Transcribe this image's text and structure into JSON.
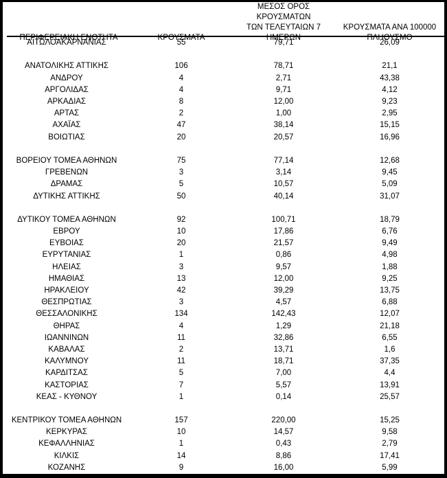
{
  "colors": {
    "text": "#000000",
    "background": "#ffffff",
    "frame_border": "#000000",
    "header_rule": "#000000"
  },
  "table": {
    "columns": [
      {
        "id": "region",
        "label": "ΠΕΡΙΦΕΡΕΙΑΚΗ ΕΝΟΤΗΤΑ"
      },
      {
        "id": "cases",
        "label": "ΚΡΟΥΣΜΑΤΑ"
      },
      {
        "id": "avg7",
        "label": "ΜΕΣΟΣ ΟΡΟΣ ΚΡΟΥΣΜΑΤΩΝ\nΤΩΝ ΤΕΛΕΥΤΑΙΩΝ 7\nΗΜΕΡΩΝ"
      },
      {
        "id": "per100k",
        "label": "ΚΡΟΥΣΜΑΤΑ ΑΝΑ 100000\nΠΛΗΘΥΣΜΟ"
      }
    ],
    "rows": [
      {
        "region": "ΑΙΤΩΛΟΑΚΑΡΝΑΝΙΑΣ",
        "cases": "55",
        "avg7": "79,71",
        "per100k": "26,09"
      },
      {
        "gap": true
      },
      {
        "region": "ΑΝΑΤΟΛΙΚΗΣ ΑΤΤΙΚΗΣ",
        "cases": "106",
        "avg7": "78,71",
        "per100k": "21,1"
      },
      {
        "region": "ΑΝΔΡΟΥ",
        "cases": "4",
        "avg7": "2,71",
        "per100k": "43,38"
      },
      {
        "region": "ΑΡΓΟΛΙΔΑΣ",
        "cases": "4",
        "avg7": "9,71",
        "per100k": "4,12"
      },
      {
        "region": "ΑΡΚΑΔΙΑΣ",
        "cases": "8",
        "avg7": "12,00",
        "per100k": "9,23"
      },
      {
        "region": "ΑΡΤΑΣ",
        "cases": "2",
        "avg7": "1,00",
        "per100k": "2,95"
      },
      {
        "region": "ΑΧΑΪΑΣ",
        "cases": "47",
        "avg7": "38,14",
        "per100k": "15,15"
      },
      {
        "region": "ΒΟΙΩΤΙΑΣ",
        "cases": "20",
        "avg7": "20,57",
        "per100k": "16,96"
      },
      {
        "gap": true
      },
      {
        "region": "ΒΟΡΕΙΟΥ ΤΟΜΕΑ ΑΘΗΝΩΝ",
        "cases": "75",
        "avg7": "77,14",
        "per100k": "12,68"
      },
      {
        "region": "ΓΡΕΒΕΝΩΝ",
        "cases": "3",
        "avg7": "3,14",
        "per100k": "9,45"
      },
      {
        "region": "ΔΡΑΜΑΣ",
        "cases": "5",
        "avg7": "10,57",
        "per100k": "5,09"
      },
      {
        "region": "ΔΥΤΙΚΗΣ ΑΤΤΙΚΗΣ",
        "cases": "50",
        "avg7": "40,14",
        "per100k": "31,07"
      },
      {
        "gap": true
      },
      {
        "region": "ΔΥΤΙΚΟΥ ΤΟΜΕΑ ΑΘΗΝΩΝ",
        "cases": "92",
        "avg7": "100,71",
        "per100k": "18,79"
      },
      {
        "region": "ΕΒΡΟΥ",
        "cases": "10",
        "avg7": "17,86",
        "per100k": "6,76"
      },
      {
        "region": "ΕΥΒΟΙΑΣ",
        "cases": "20",
        "avg7": "21,57",
        "per100k": "9,49"
      },
      {
        "region": "ΕΥΡΥΤΑΝΙΑΣ",
        "cases": "1",
        "avg7": "0,86",
        "per100k": "4,98"
      },
      {
        "region": "ΗΛΕΙΑΣ",
        "cases": "3",
        "avg7": "9,57",
        "per100k": "1,88"
      },
      {
        "region": "ΗΜΑΘΙΑΣ",
        "cases": "13",
        "avg7": "12,00",
        "per100k": "9,25"
      },
      {
        "region": "ΗΡΑΚΛΕΙΟΥ",
        "cases": "42",
        "avg7": "39,29",
        "per100k": "13,75"
      },
      {
        "region": "ΘΕΣΠΡΩΤΙΑΣ",
        "cases": "3",
        "avg7": "4,57",
        "per100k": "6,88"
      },
      {
        "region": "ΘΕΣΣΑΛΟΝΙΚΗΣ",
        "cases": "134",
        "avg7": "142,43",
        "per100k": "12,07"
      },
      {
        "region": "ΘΗΡΑΣ",
        "cases": "4",
        "avg7": "1,29",
        "per100k": "21,18"
      },
      {
        "region": "ΙΩΑΝΝΙΝΩΝ",
        "cases": "11",
        "avg7": "32,86",
        "per100k": "6,55"
      },
      {
        "region": "ΚΑΒΑΛΑΣ",
        "cases": "2",
        "avg7": "13,71",
        "per100k": "1,6"
      },
      {
        "region": "ΚΑΛΥΜΝΟΥ",
        "cases": "11",
        "avg7": "18,71",
        "per100k": "37,35"
      },
      {
        "region": "ΚΑΡΔΙΤΣΑΣ",
        "cases": "5",
        "avg7": "7,00",
        "per100k": "4,4"
      },
      {
        "region": "ΚΑΣΤΟΡΙΑΣ",
        "cases": "7",
        "avg7": "5,57",
        "per100k": "13,91"
      },
      {
        "region": "ΚΕΑΣ - ΚΥΘΝΟΥ",
        "cases": "1",
        "avg7": "0,14",
        "per100k": "25,57"
      },
      {
        "gap": true
      },
      {
        "region": "ΚΕΝΤΡΙΚΟΥ ΤΟΜΕΑ ΑΘΗΝΩΝ",
        "cases": "157",
        "avg7": "220,00",
        "per100k": "15,25"
      },
      {
        "region": "ΚΕΡΚΥΡΑΣ",
        "cases": "10",
        "avg7": "14,57",
        "per100k": "9,58"
      },
      {
        "region": "ΚΕΦΑΛΛΗΝΙΑΣ",
        "cases": "1",
        "avg7": "0,43",
        "per100k": "2,79"
      },
      {
        "region": "ΚΙΛΚΙΣ",
        "cases": "14",
        "avg7": "8,86",
        "per100k": "17,41"
      },
      {
        "region": "ΚΟΖΑΝΗΣ",
        "cases": "9",
        "avg7": "16,00",
        "per100k": "5,99"
      }
    ]
  }
}
